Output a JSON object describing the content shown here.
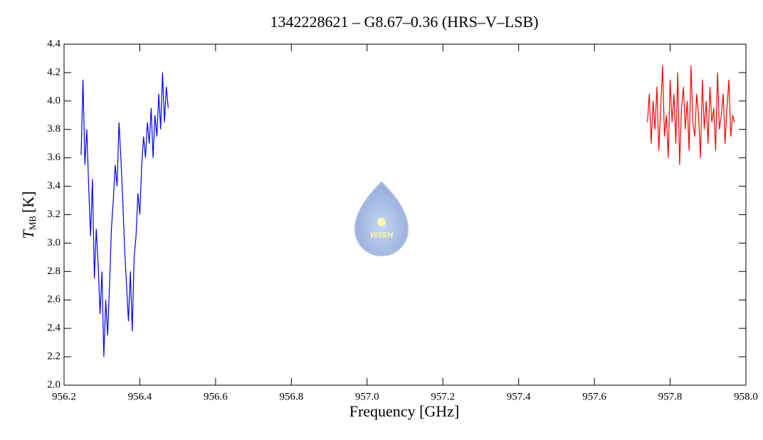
{
  "chart_data": {
    "type": "line",
    "title": "1342228621 – G8.67–0.36 (HRS–V–LSB)",
    "xlabel": "Frequency [GHz]",
    "ylabel": {
      "symbol": "T",
      "subscript": "MB",
      "unit": "[K]"
    },
    "watermark": "WISH",
    "xlim": [
      956.2,
      958.0
    ],
    "xticks": [
      956.2,
      956.4,
      956.6,
      956.8,
      {
        "value": 957,
        "label": "957.0"
      },
      957.2,
      957.4,
      957.6,
      957.8,
      {
        "value": 958,
        "label": "958.0"
      }
    ],
    "ylim": [
      2.0,
      4.4
    ],
    "yticks": [
      {
        "value": 2,
        "label": "2.0"
      },
      2.2,
      2.4,
      2.6,
      2.8,
      {
        "value": 3,
        "label": "3.0"
      },
      3.2,
      3.4,
      3.6,
      3.8,
      {
        "value": 4,
        "label": "4.0"
      },
      4.2,
      4.4
    ],
    "series": [
      {
        "color": "#0000ff",
        "x": [
          956.245,
          956.25,
          956.255,
          956.26,
          956.265,
          956.27,
          956.275,
          956.28,
          956.285,
          956.29,
          956.295,
          956.3,
          956.305,
          956.31,
          956.315,
          956.32,
          956.325,
          956.33,
          956.335,
          956.34,
          956.345,
          956.35,
          956.355,
          956.36,
          956.365,
          956.37,
          956.375,
          956.38,
          956.385,
          956.39,
          956.395,
          956.4,
          956.405,
          956.41,
          956.415,
          956.42,
          956.425,
          956.43,
          956.435,
          956.44,
          956.445,
          956.45,
          956.455,
          956.46,
          956.465,
          956.47,
          956.475
        ],
        "values": [
          3.62,
          4.15,
          3.55,
          3.8,
          3.4,
          3.05,
          3.45,
          2.75,
          3.1,
          2.85,
          2.5,
          2.8,
          2.2,
          2.6,
          2.35,
          2.7,
          3.1,
          3.3,
          3.55,
          3.4,
          3.85,
          3.6,
          3.3,
          2.95,
          2.7,
          2.45,
          2.8,
          2.38,
          2.9,
          3.05,
          3.35,
          3.2,
          3.55,
          3.75,
          3.6,
          3.85,
          3.7,
          3.95,
          3.6,
          3.9,
          3.75,
          4.05,
          3.8,
          4.2,
          3.85,
          4.1,
          3.95
        ]
      },
      {
        "color": "#ff0000",
        "x": [
          957.74,
          957.745,
          957.75,
          957.755,
          957.76,
          957.765,
          957.77,
          957.775,
          957.78,
          957.785,
          957.79,
          957.795,
          957.8,
          957.805,
          957.81,
          957.815,
          957.82,
          957.825,
          957.83,
          957.835,
          957.84,
          957.845,
          957.85,
          957.855,
          957.86,
          957.865,
          957.87,
          957.875,
          957.88,
          957.885,
          957.89,
          957.895,
          957.9,
          957.905,
          957.91,
          957.915,
          957.92,
          957.925,
          957.93,
          957.935,
          957.94,
          957.945,
          957.95,
          957.955,
          957.96,
          957.965,
          957.97
        ],
        "values": [
          3.85,
          4.05,
          3.7,
          4.0,
          3.8,
          4.1,
          3.65,
          3.95,
          4.25,
          3.75,
          3.9,
          3.6,
          4.15,
          3.85,
          4.05,
          3.7,
          4.2,
          3.55,
          3.95,
          4.1,
          3.8,
          4.0,
          3.65,
          4.25,
          3.85,
          3.75,
          4.05,
          3.9,
          3.6,
          4.15,
          3.8,
          4.0,
          3.7,
          4.1,
          3.85,
          3.95,
          3.65,
          4.2,
          3.8,
          3.9,
          4.05,
          3.7,
          3.95,
          4.15,
          3.75,
          3.9,
          3.85
        ]
      }
    ]
  }
}
